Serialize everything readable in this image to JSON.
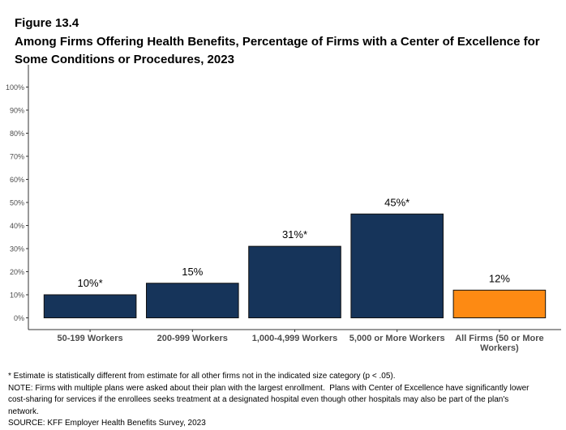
{
  "figure_label": "Figure 13.4",
  "chart_data": {
    "type": "bar",
    "title": "Among Firms Offering Health Benefits, Percentage of Firms with a Center of Excellence for Some Conditions or Procedures, 2023",
    "xlabel": "",
    "ylabel": "",
    "ylim": [
      0,
      100
    ],
    "yticks": [
      0,
      10,
      20,
      30,
      40,
      50,
      60,
      70,
      80,
      90,
      100
    ],
    "ytick_labels": [
      "0%",
      "10%",
      "20%",
      "30%",
      "40%",
      "50%",
      "60%",
      "70%",
      "80%",
      "90%",
      "100%"
    ],
    "grid": false,
    "categories": [
      "50-199 Workers",
      "200-999 Workers",
      "1,000-4,999 Workers",
      "5,000 or More Workers",
      "All Firms (50 or More Workers)"
    ],
    "category_lines": [
      [
        "50-199 Workers"
      ],
      [
        "200-999 Workers"
      ],
      [
        "1,000-4,999 Workers"
      ],
      [
        "5,000 or More Workers"
      ],
      [
        "All Firms (50 or More",
        "Workers)"
      ]
    ],
    "values": [
      10,
      15,
      31,
      45,
      12
    ],
    "data_labels": [
      "10%*",
      "15%",
      "31%*",
      "45%*",
      "12%"
    ],
    "colors": [
      "#16345a",
      "#16345a",
      "#16345a",
      "#16345a",
      "#fd8a13"
    ]
  },
  "footer": {
    "asterisk_note": "* Estimate is statistically different from estimate for all other firms not in the indicated size category (p < .05).",
    "note_lines": [
      "NOTE: Firms with multiple plans were asked about their plan with the largest enrollment.  Plans with Center of Excellence have significantly lower",
      "cost-sharing for services if the enrollees seeks treatment at a designated hospital even though other hospitals may also be part of the plan's",
      "network."
    ],
    "source": "SOURCE: KFF Employer Health Benefits Survey, 2023"
  }
}
